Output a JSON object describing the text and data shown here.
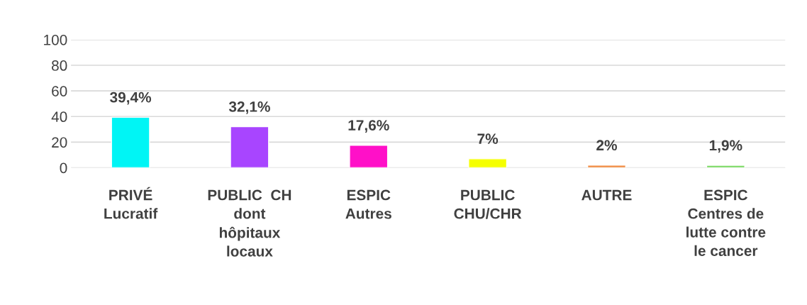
{
  "chart_data": {
    "type": "bar",
    "categories": [
      "PRIVÉ\nLucratif",
      "PUBLIC  CH\ndont\nhôpitaux\nlocaux",
      "ESPIC\nAutres",
      "PUBLIC\nCHU/CHR",
      "AUTRE",
      "ESPIC\nCentres de\nlutte contre\nle cancer"
    ],
    "values": [
      39.4,
      32.1,
      17.6,
      7,
      2,
      1.9
    ],
    "colors": [
      "#00f5f5",
      "#a845ff",
      "#ff10c8",
      "#f5ff00",
      "#f08a40",
      "#78d860"
    ],
    "value_labels": [
      "39,4%",
      "32,1%",
      "17,6%",
      "7%",
      "2%",
      "1,9%"
    ],
    "ylim": [
      0,
      100
    ],
    "yticks": [
      0,
      20,
      40,
      60,
      80,
      100
    ],
    "grid": "y"
  }
}
